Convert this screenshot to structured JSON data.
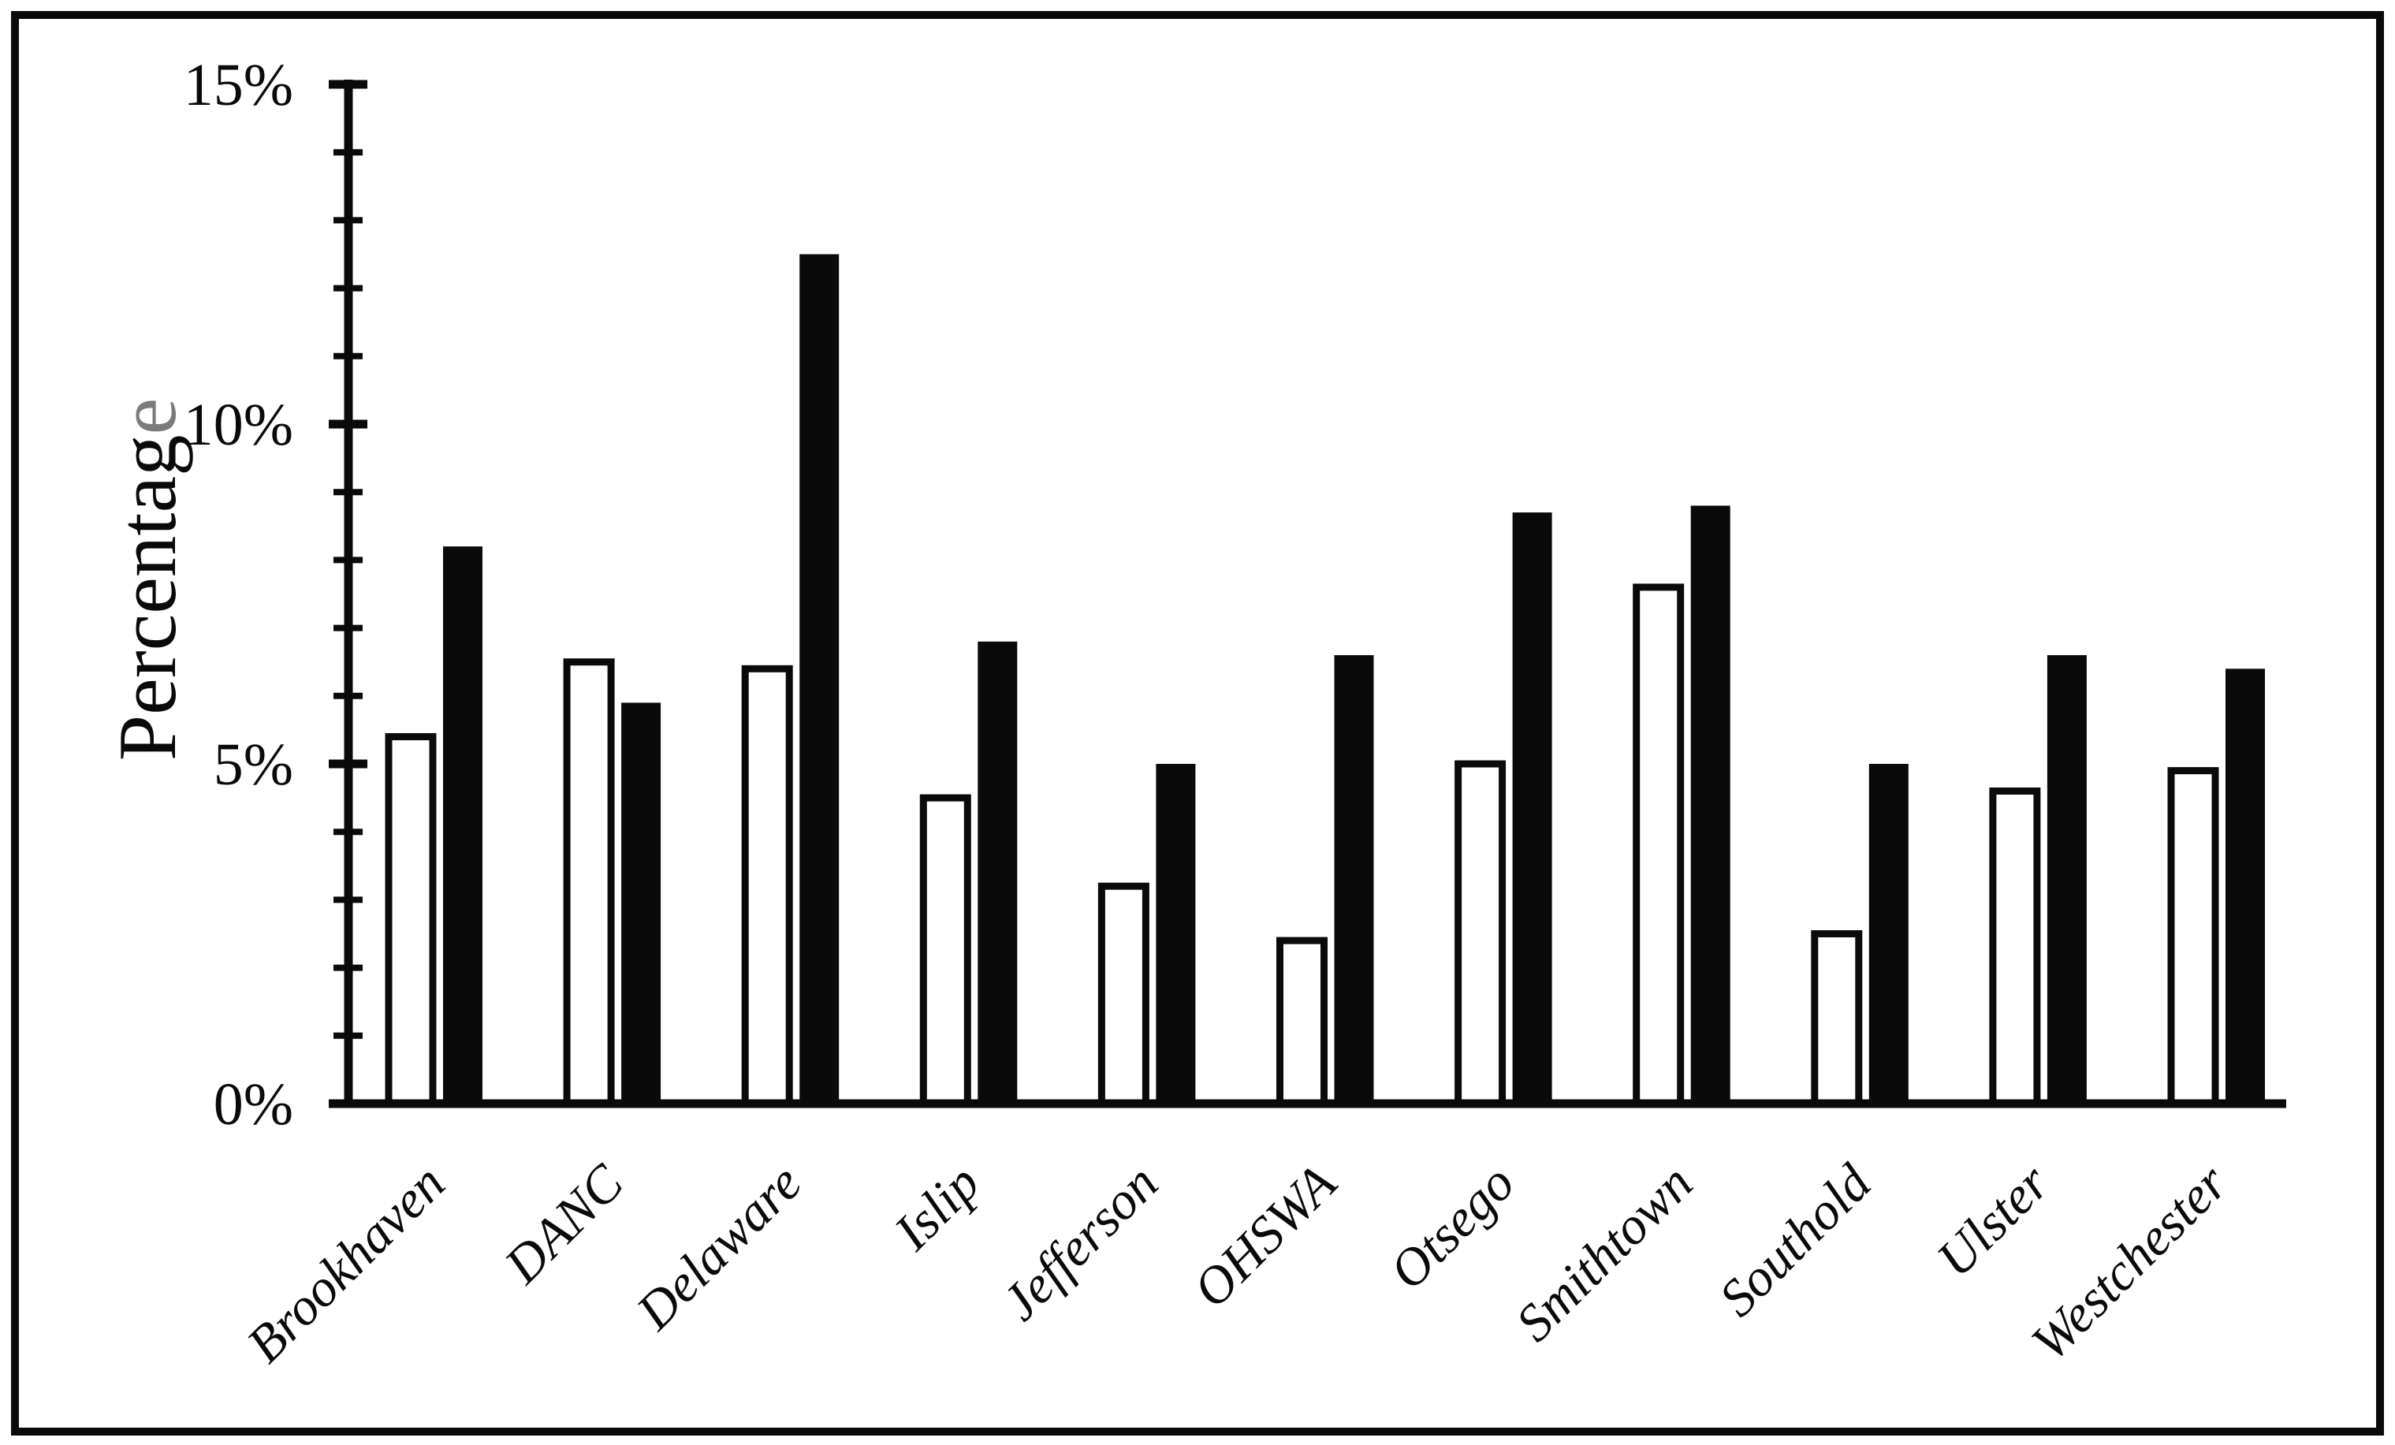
{
  "figure": {
    "background": "#ffffff",
    "frame_color": "#0a0a0a"
  },
  "chart_data": {
    "type": "bar",
    "title": "",
    "xlabel": "",
    "ylabel": "Percentage",
    "ylabel_last_letter_color": "#7b7b7b",
    "ylabel_color": "#0a0a0a",
    "ylim": [
      0,
      15
    ],
    "y_major_tick_step": 5,
    "y_minor_tick_step": 1,
    "grid": false,
    "legend_position": "none",
    "axis_color": "#0a0a0a",
    "categories": [
      "Brookhaven",
      "DANC",
      "Delaware",
      "Islip",
      "Jefferson",
      "OHSWA",
      "Otsego",
      "Smithtown",
      "Southold",
      "Ulster",
      "Westchester"
    ],
    "y_ticks": [
      {
        "value": 0,
        "label": "0%"
      },
      {
        "value": 5,
        "label": "5%"
      },
      {
        "value": 10,
        "label": "10%"
      },
      {
        "value": 15,
        "label": "15%"
      }
    ],
    "series": [
      {
        "name": "open-bar-series",
        "fill": "#ffffff",
        "stroke": "#0a0a0a",
        "values": [
          5.4,
          6.5,
          6.4,
          4.5,
          3.2,
          2.4,
          5.0,
          7.6,
          2.5,
          4.6,
          4.9
        ]
      },
      {
        "name": "filled-bar-series",
        "fill": "#0a0a0a",
        "stroke": "none",
        "values": [
          8.2,
          5.9,
          12.5,
          6.8,
          5.0,
          6.6,
          8.7,
          8.8,
          5.0,
          6.6,
          6.4
        ]
      }
    ]
  }
}
